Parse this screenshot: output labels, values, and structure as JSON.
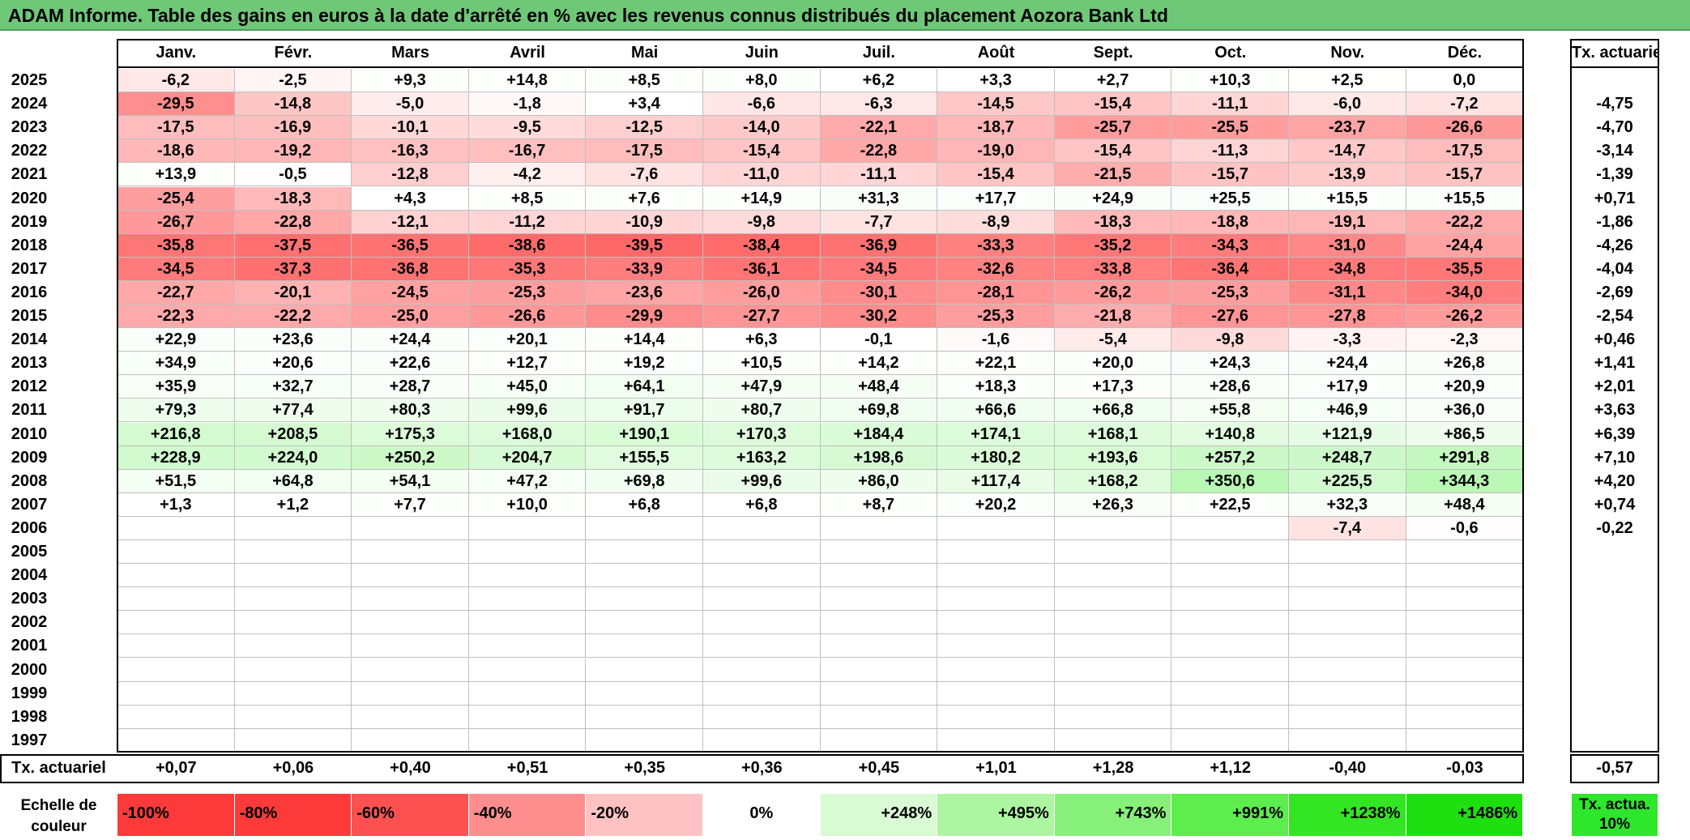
{
  "title": "ADAM Informe. Table des gains en euros à la date d'arrêté en % avec les revenus connus distribués du placement Aozora Bank Ltd",
  "months": [
    "Janv.",
    "Févr.",
    "Mars",
    "Avril",
    "Mai",
    "Juin",
    "Juil.",
    "Août",
    "Sept.",
    "Oct.",
    "Nov.",
    "Déc."
  ],
  "rate_header": "Tx. actuariel",
  "rows": [
    {
      "year": "2025",
      "values": [
        "-6,2",
        "-2,5",
        "+9,3",
        "+14,8",
        "+8,5",
        "+8,0",
        "+6,2",
        "+3,3",
        "+2,7",
        "+10,3",
        "+2,5",
        "0,0"
      ],
      "rate": ""
    },
    {
      "year": "2024",
      "values": [
        "-29,5",
        "-14,8",
        "-5,0",
        "-1,8",
        "+3,4",
        "-6,6",
        "-6,3",
        "-14,5",
        "-15,4",
        "-11,1",
        "-6,0",
        "-7,2"
      ],
      "rate": "-4,75"
    },
    {
      "year": "2023",
      "values": [
        "-17,5",
        "-16,9",
        "-10,1",
        "-9,5",
        "-12,5",
        "-14,0",
        "-22,1",
        "-18,7",
        "-25,7",
        "-25,5",
        "-23,7",
        "-26,6"
      ],
      "rate": "-4,70"
    },
    {
      "year": "2022",
      "values": [
        "-18,6",
        "-19,2",
        "-16,3",
        "-16,7",
        "-17,5",
        "-15,4",
        "-22,8",
        "-19,0",
        "-15,4",
        "-11,3",
        "-14,7",
        "-17,5"
      ],
      "rate": "-3,14"
    },
    {
      "year": "2021",
      "values": [
        "+13,9",
        "-0,5",
        "-12,8",
        "-4,2",
        "-7,6",
        "-11,0",
        "-11,1",
        "-15,4",
        "-21,5",
        "-15,7",
        "-13,9",
        "-15,7"
      ],
      "rate": "-1,39"
    },
    {
      "year": "2020",
      "values": [
        "-25,4",
        "-18,3",
        "+4,3",
        "+8,5",
        "+7,6",
        "+14,9",
        "+31,3",
        "+17,7",
        "+24,9",
        "+25,5",
        "+15,5",
        "+15,5"
      ],
      "rate": "+0,71"
    },
    {
      "year": "2019",
      "values": [
        "-26,7",
        "-22,8",
        "-12,1",
        "-11,2",
        "-10,9",
        "-9,8",
        "-7,7",
        "-8,9",
        "-18,3",
        "-18,8",
        "-19,1",
        "-22,2"
      ],
      "rate": "-1,86"
    },
    {
      "year": "2018",
      "values": [
        "-35,8",
        "-37,5",
        "-36,5",
        "-38,6",
        "-39,5",
        "-38,4",
        "-36,9",
        "-33,3",
        "-35,2",
        "-34,3",
        "-31,0",
        "-24,4"
      ],
      "rate": "-4,26"
    },
    {
      "year": "2017",
      "values": [
        "-34,5",
        "-37,3",
        "-36,8",
        "-35,3",
        "-33,9",
        "-36,1",
        "-34,5",
        "-32,6",
        "-33,8",
        "-36,4",
        "-34,8",
        "-35,5"
      ],
      "rate": "-4,04"
    },
    {
      "year": "2016",
      "values": [
        "-22,7",
        "-20,1",
        "-24,5",
        "-25,3",
        "-23,6",
        "-26,0",
        "-30,1",
        "-28,1",
        "-26,2",
        "-25,3",
        "-31,1",
        "-34,0"
      ],
      "rate": "-2,69"
    },
    {
      "year": "2015",
      "values": [
        "-22,3",
        "-22,2",
        "-25,0",
        "-26,6",
        "-29,9",
        "-27,7",
        "-30,2",
        "-25,3",
        "-21,8",
        "-27,6",
        "-27,8",
        "-26,2"
      ],
      "rate": "-2,54"
    },
    {
      "year": "2014",
      "values": [
        "+22,9",
        "+23,6",
        "+24,4",
        "+20,1",
        "+14,4",
        "+6,3",
        "-0,1",
        "-1,6",
        "-5,4",
        "-9,8",
        "-3,3",
        "-2,3"
      ],
      "rate": "+0,46"
    },
    {
      "year": "2013",
      "values": [
        "+34,9",
        "+20,6",
        "+22,6",
        "+12,7",
        "+19,2",
        "+10,5",
        "+14,2",
        "+22,1",
        "+20,0",
        "+24,3",
        "+24,4",
        "+26,8"
      ],
      "rate": "+1,41"
    },
    {
      "year": "2012",
      "values": [
        "+35,9",
        "+32,7",
        "+28,7",
        "+45,0",
        "+64,1",
        "+47,9",
        "+48,4",
        "+18,3",
        "+17,3",
        "+28,6",
        "+17,9",
        "+20,9"
      ],
      "rate": "+2,01"
    },
    {
      "year": "2011",
      "values": [
        "+79,3",
        "+77,4",
        "+80,3",
        "+99,6",
        "+91,7",
        "+80,7",
        "+69,8",
        "+66,6",
        "+66,8",
        "+55,8",
        "+46,9",
        "+36,0"
      ],
      "rate": "+3,63"
    },
    {
      "year": "2010",
      "values": [
        "+216,8",
        "+208,5",
        "+175,3",
        "+168,0",
        "+190,1",
        "+170,3",
        "+184,4",
        "+174,1",
        "+168,1",
        "+140,8",
        "+121,9",
        "+86,5"
      ],
      "rate": "+6,39"
    },
    {
      "year": "2009",
      "values": [
        "+228,9",
        "+224,0",
        "+250,2",
        "+204,7",
        "+155,5",
        "+163,2",
        "+198,6",
        "+180,2",
        "+193,6",
        "+257,2",
        "+248,7",
        "+291,8"
      ],
      "rate": "+7,10"
    },
    {
      "year": "2008",
      "values": [
        "+51,5",
        "+64,8",
        "+54,1",
        "+47,2",
        "+69,8",
        "+99,6",
        "+86,0",
        "+117,4",
        "+168,2",
        "+350,6",
        "+225,5",
        "+344,3"
      ],
      "rate": "+4,20"
    },
    {
      "year": "2007",
      "values": [
        "+1,3",
        "+1,2",
        "+7,7",
        "+10,0",
        "+6,8",
        "+6,8",
        "+8,7",
        "+20,2",
        "+26,3",
        "+22,5",
        "+32,3",
        "+48,4"
      ],
      "rate": "+0,74"
    },
    {
      "year": "2006",
      "values": [
        "",
        "",
        "",
        "",
        "",
        "",
        "",
        "",
        "",
        "",
        "-7,4",
        "-0,6"
      ],
      "rate": "-0,22"
    },
    {
      "year": "2005",
      "values": [
        "",
        "",
        "",
        "",
        "",
        "",
        "",
        "",
        "",
        "",
        "",
        ""
      ],
      "rate": ""
    },
    {
      "year": "2004",
      "values": [
        "",
        "",
        "",
        "",
        "",
        "",
        "",
        "",
        "",
        "",
        "",
        ""
      ],
      "rate": ""
    },
    {
      "year": "2003",
      "values": [
        "",
        "",
        "",
        "",
        "",
        "",
        "",
        "",
        "",
        "",
        "",
        ""
      ],
      "rate": ""
    },
    {
      "year": "2002",
      "values": [
        "",
        "",
        "",
        "",
        "",
        "",
        "",
        "",
        "",
        "",
        "",
        ""
      ],
      "rate": ""
    },
    {
      "year": "2001",
      "values": [
        "",
        "",
        "",
        "",
        "",
        "",
        "",
        "",
        "",
        "",
        "",
        ""
      ],
      "rate": ""
    },
    {
      "year": "2000",
      "values": [
        "",
        "",
        "",
        "",
        "",
        "",
        "",
        "",
        "",
        "",
        "",
        ""
      ],
      "rate": ""
    },
    {
      "year": "1999",
      "values": [
        "",
        "",
        "",
        "",
        "",
        "",
        "",
        "",
        "",
        "",
        "",
        ""
      ],
      "rate": ""
    },
    {
      "year": "1998",
      "values": [
        "",
        "",
        "",
        "",
        "",
        "",
        "",
        "",
        "",
        "",
        "",
        ""
      ],
      "rate": ""
    },
    {
      "year": "1997",
      "values": [
        "",
        "",
        "",
        "",
        "",
        "",
        "",
        "",
        "",
        "",
        "",
        ""
      ],
      "rate": ""
    }
  ],
  "footer": {
    "label": "Tx. actuariel",
    "values": [
      "+0,07",
      "+0,06",
      "+0,40",
      "+0,51",
      "+0,35",
      "+0,36",
      "+0,45",
      "+1,01",
      "+1,28",
      "+1,12",
      "-0,40",
      "-0,03"
    ],
    "total": "-0,57"
  },
  "legend": {
    "label": "Echelle de couleur",
    "items": [
      {
        "text": "-100%",
        "color": "#fc3a3a",
        "align": "left"
      },
      {
        "text": "-80%",
        "color": "#fc3a3a",
        "align": "left"
      },
      {
        "text": "-60%",
        "color": "#fd5151",
        "align": "left"
      },
      {
        "text": "-40%",
        "color": "#fe8e8e",
        "align": "left"
      },
      {
        "text": "-20%",
        "color": "#ffc2c2",
        "align": "left"
      },
      {
        "text": "0%",
        "color": "#ffffff",
        "align": "center"
      },
      {
        "text": "+248%",
        "color": "#d9fbd4",
        "align": "right"
      },
      {
        "text": "+495%",
        "color": "#adf5a1",
        "align": "right"
      },
      {
        "text": "+743%",
        "color": "#86f07a",
        "align": "right"
      },
      {
        "text": "+991%",
        "color": "#5ded4d",
        "align": "right"
      },
      {
        "text": "+1238%",
        "color": "#33e624",
        "align": "right"
      },
      {
        "text": "+1486%",
        "color": "#1ee010",
        "align": "right"
      }
    ],
    "rate_label": "Tx. actua. 10%",
    "rate_color": "#2ee62b"
  },
  "colors": {
    "title_bg": "#6fc778",
    "negative": "#ff6666",
    "positive": "#b9f7b4"
  }
}
